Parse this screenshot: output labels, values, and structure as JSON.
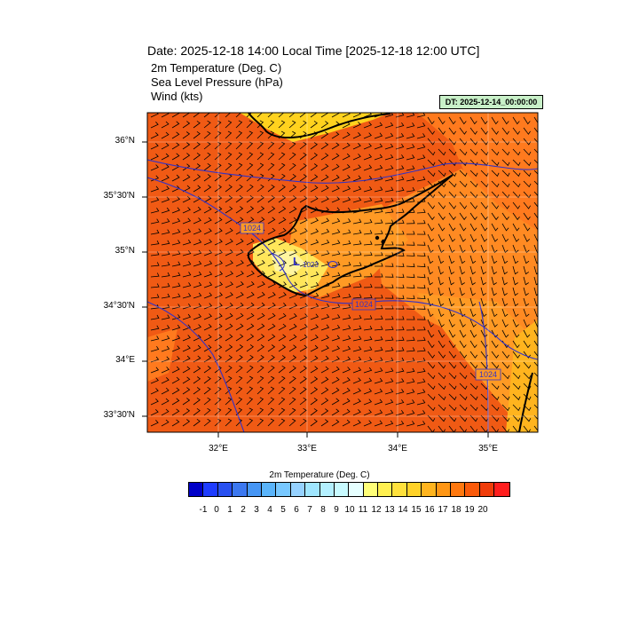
{
  "header": {
    "title": "Date: 2025-12-18  14:00 Local Time [2025-12-18  12:00 UTC]",
    "fields": [
      "2m Temperature (Deg. C)",
      "Sea Level Pressure   (hPa)",
      "Wind   (kts)"
    ],
    "init_time": "DT: 2025-12-14_00:00:00"
  },
  "map": {
    "region": "Cyprus / Eastern Mediterranean",
    "lat_labels": [
      "36°N",
      "35°30'N",
      "35°N",
      "34°30'N",
      "34°E",
      "33°30'N"
    ],
    "lon_labels": [
      "32°E",
      "33°E",
      "34°E",
      "35°E"
    ],
    "isobar_labels": [
      "1024",
      "1023",
      "1024",
      "1024"
    ],
    "low_marker": "L",
    "fill_colors": {
      "warm": "#f05a14",
      "mid": "#ff7a1e",
      "light": "#ffa01e",
      "yellow": "#ffd21e",
      "pale": "#ffe65a"
    },
    "isobar_color": "#3232c8",
    "coast_color": "#000000"
  },
  "colorbar": {
    "title": "2m Temperature (Deg. C)",
    "labels": [
      "-1",
      "0",
      "1",
      "2",
      "3",
      "4",
      "5",
      "6",
      "7",
      "8",
      "9",
      "10",
      "11",
      "12",
      "13",
      "14",
      "15",
      "16",
      "17",
      "18",
      "19",
      "20"
    ],
    "colors": [
      "#0000c8",
      "#1e3cff",
      "#2850f0",
      "#3c78f0",
      "#4696f5",
      "#5ab4fa",
      "#78c8ff",
      "#96d2ff",
      "#a0e6ff",
      "#b4f0ff",
      "#c8faff",
      "#e6ffff",
      "#ffff78",
      "#fff050",
      "#ffe13c",
      "#ffd228",
      "#ffb41e",
      "#ff9614",
      "#ff780f",
      "#fa5a0a",
      "#f03c0a",
      "#ff1e1e"
    ]
  }
}
